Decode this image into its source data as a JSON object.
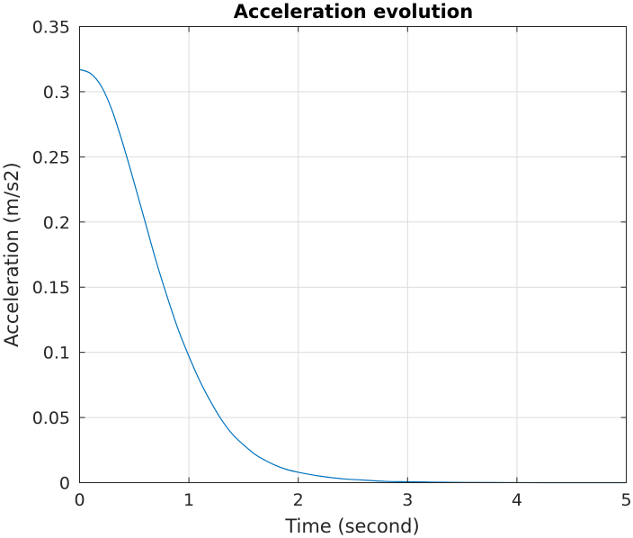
{
  "chart_data": {
    "type": "line",
    "title": "Acceleration evolution",
    "xlabel": "Time (second)",
    "ylabel": "Acceleration (m/s2)",
    "xlim": [
      0,
      5
    ],
    "ylim": [
      0,
      0.35
    ],
    "xticks": [
      0,
      1,
      2,
      3,
      4,
      5
    ],
    "xtick_labels": [
      "0",
      "1",
      "2",
      "3",
      "4",
      "5"
    ],
    "yticks": [
      0,
      0.05,
      0.1,
      0.15,
      0.2,
      0.25,
      0.3,
      0.35
    ],
    "ytick_labels": [
      "0",
      "0.05",
      "0.1",
      "0.15",
      "0.2",
      "0.25",
      "0.3",
      "0.35"
    ],
    "grid": true,
    "colors": {
      "line": "#0072bd",
      "grid": "#dcdcdc",
      "axis": "#262626"
    },
    "series": [
      {
        "x": [
          0,
          0.1,
          0.2,
          0.3,
          0.4,
          0.5,
          0.6,
          0.7,
          0.8,
          0.9,
          1.0,
          1.1,
          1.2,
          1.3,
          1.4,
          1.5,
          1.6,
          1.7,
          1.8,
          1.9,
          2.0,
          2.2,
          2.4,
          2.6,
          2.8,
          3.0,
          3.25,
          3.5,
          4.0,
          4.5,
          5.0
        ],
        "y": [
          0.317,
          0.314,
          0.304,
          0.285,
          0.259,
          0.23,
          0.2,
          0.17,
          0.143,
          0.118,
          0.097,
          0.078,
          0.062,
          0.048,
          0.037,
          0.029,
          0.022,
          0.017,
          0.013,
          0.01,
          0.008,
          0.005,
          0.003,
          0.002,
          0.001,
          0.0007,
          0.0004,
          0.0002,
          5e-05,
          1e-05,
          0.0
        ]
      }
    ]
  }
}
